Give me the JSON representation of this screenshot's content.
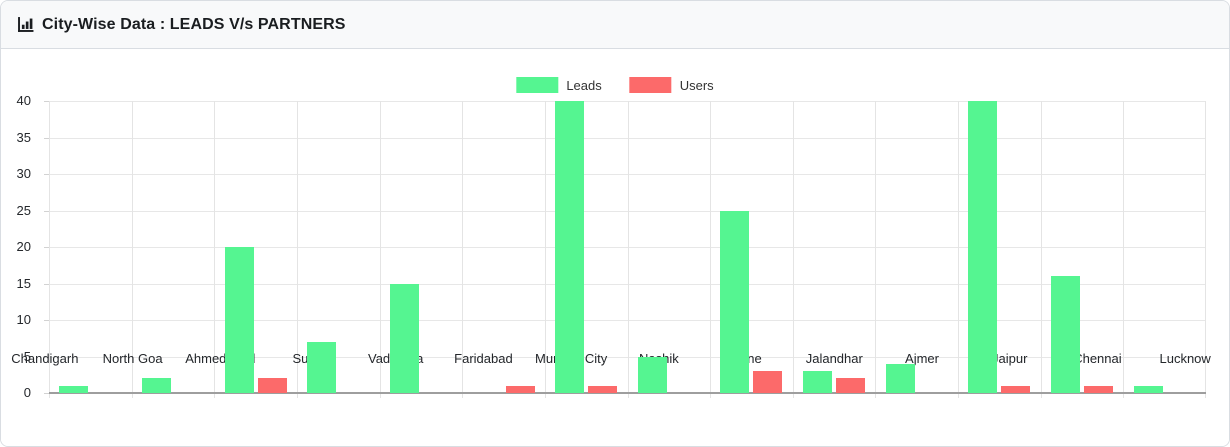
{
  "header": {
    "title": "City-Wise Data : LEADS V/s PARTNERS",
    "icon": "bar-chart-icon"
  },
  "legend": {
    "items": [
      {
        "label": "Leads",
        "color": "#55f591"
      },
      {
        "label": "Users",
        "color": "#fc6a6a"
      }
    ],
    "position": "top-center"
  },
  "chart_data": {
    "type": "bar",
    "title": "City-Wise Data : LEADS V/s PARTNERS",
    "categories": [
      "Chandigarh",
      "North Goa",
      "Ahmedabad",
      "Surat",
      "Vadodara",
      "Faridabad",
      "Mumbai City",
      "Nashik",
      "Pune",
      "Jalandhar",
      "Ajmer",
      "Jaipur",
      "Chennai",
      "Lucknow"
    ],
    "series": [
      {
        "name": "Leads",
        "color": "#55f591",
        "values": [
          1,
          2,
          20,
          7,
          15,
          0,
          40,
          5,
          25,
          3,
          4,
          40,
          16,
          1
        ]
      },
      {
        "name": "Users",
        "color": "#fc6a6a",
        "values": [
          0,
          0,
          2,
          0,
          0,
          1,
          1,
          0,
          3,
          2,
          0,
          1,
          1,
          0
        ]
      }
    ],
    "xlabel": "",
    "ylabel": "",
    "ylim": [
      0,
      40
    ],
    "yticks": [
      0,
      5,
      10,
      15,
      20,
      25,
      30,
      35,
      40
    ],
    "grid": true,
    "legend_position": "top-center"
  },
  "colors": {
    "header_bg": "#f8f9fa",
    "card_border": "#d9dde2",
    "gridline": "#e7e7e7",
    "axis": "#9e9e9e",
    "bar_green": "#55f591",
    "bar_red": "#fc6a6a"
  }
}
